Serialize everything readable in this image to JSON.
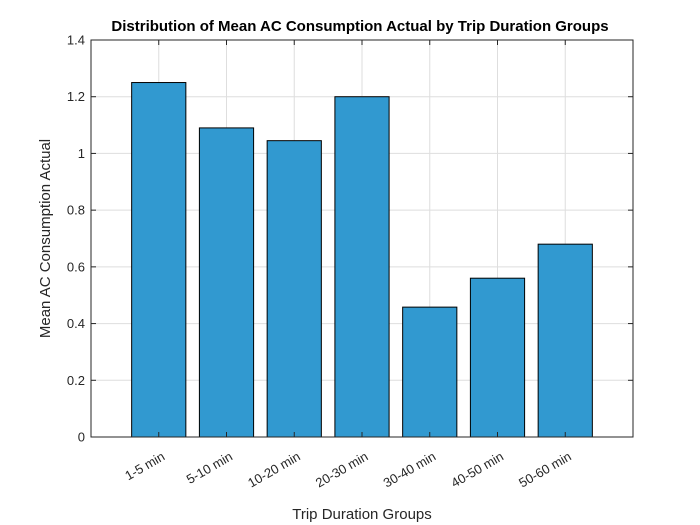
{
  "chart_data": {
    "type": "bar",
    "title": "Distribution of Mean AC Consumption Actual by Trip Duration Groups",
    "xlabel": "Trip Duration Groups",
    "ylabel": "Mean AC Consumption Actual",
    "categories": [
      "1-5 min",
      "5-10 min",
      "10-20 min",
      "20-30 min",
      "30-40 min",
      "40-50 min",
      "50-60 min"
    ],
    "values": [
      1.25,
      1.09,
      1.045,
      1.2,
      0.458,
      0.56,
      0.68
    ],
    "ylim": [
      0,
      1.4
    ],
    "yticks": [
      0,
      0.2,
      0.4,
      0.6,
      0.8,
      1,
      1.2,
      1.4
    ],
    "ytick_labels": [
      "0",
      "0.2",
      "0.4",
      "0.6",
      "0.8",
      "1",
      "1.2",
      "1.4"
    ],
    "grid": true,
    "bar_color": "#3199d0",
    "axis_color": "#262626",
    "grid_color": "#dedede"
  }
}
